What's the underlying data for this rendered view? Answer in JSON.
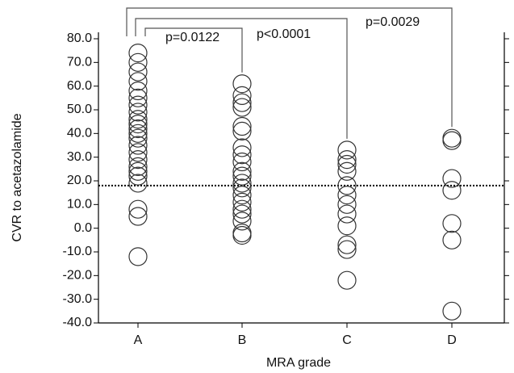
{
  "chart_data": {
    "type": "scatter",
    "x_label": "MRA grade",
    "y_label": "CVR to acetazolamide",
    "categories": [
      "A",
      "B",
      "C",
      "D"
    ],
    "values": [
      [
        74,
        70,
        66,
        62,
        58,
        55,
        52,
        49,
        46,
        44,
        42,
        40,
        38,
        35,
        32,
        29,
        26,
        24,
        22,
        19,
        8,
        5,
        -12
      ],
      [
        61,
        56,
        53,
        51,
        43,
        41,
        34,
        31,
        28,
        24,
        22,
        19,
        17,
        14,
        11,
        8,
        6,
        3,
        -2,
        -3
      ],
      [
        33,
        29,
        27,
        24,
        18,
        14,
        10,
        6,
        1,
        -7,
        -9,
        -22
      ],
      [
        38,
        37,
        21,
        16,
        2,
        -5,
        -35
      ]
    ],
    "reference_line": 18,
    "annotations": [
      "p=0.0122",
      "p<0.0001",
      "p=0.0029"
    ],
    "ylim": [
      -40,
      80
    ],
    "yticks": [
      {
        "value": -40,
        "label": "-40.0"
      },
      {
        "value": -30,
        "label": "-30.0"
      },
      {
        "value": -20,
        "label": "-20.0"
      },
      {
        "value": -10,
        "label": "-10.0"
      },
      {
        "value": 0,
        "label": "0.0"
      },
      {
        "value": 10,
        "label": "10.0"
      },
      {
        "value": 20,
        "label": "20.0"
      },
      {
        "value": 30,
        "label": "30.0"
      },
      {
        "value": 40,
        "label": "40.0"
      },
      {
        "value": 50,
        "label": "50.0"
      },
      {
        "value": 60,
        "label": "60.0"
      },
      {
        "value": 70,
        "label": "70.0"
      },
      {
        "value": 80,
        "label": "80.0"
      }
    ],
    "color": "#333333"
  }
}
